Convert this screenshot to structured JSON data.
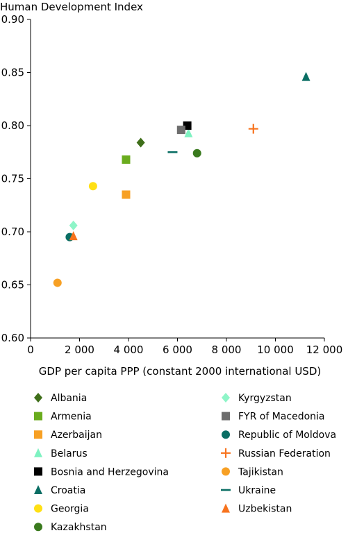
{
  "chart_data": {
    "type": "scatter",
    "ylabel": "Human Development Index",
    "xlabel": "GDP per capita PPP (constant 2000 international USD)",
    "xlim": [
      0,
      12000
    ],
    "ylim": [
      0.6,
      0.9
    ],
    "x_ticks": [
      0,
      2000,
      4000,
      6000,
      8000,
      10000,
      12000
    ],
    "x_tick_labels": [
      "0",
      "2 000",
      "4 000",
      "6 000",
      "8 000",
      "10 000",
      "12 000"
    ],
    "y_ticks": [
      0.6,
      0.65,
      0.7,
      0.75,
      0.8,
      0.85,
      0.9
    ],
    "y_tick_labels": [
      "0.60",
      "0.65",
      "0.70",
      "0.75",
      "0.80",
      "0.85",
      "0.90"
    ],
    "grid": false,
    "legend_position": "bottom",
    "series": [
      {
        "name": "Albania",
        "marker": "diamond",
        "color": "#3f6f1a",
        "x": 4500,
        "y": 0.784
      },
      {
        "name": "Armenia",
        "marker": "square",
        "color": "#6aac1e",
        "x": 3900,
        "y": 0.768
      },
      {
        "name": "Azerbaijan",
        "marker": "square",
        "color": "#f7a024",
        "x": 3900,
        "y": 0.735
      },
      {
        "name": "Belarus",
        "marker": "triangle",
        "color": "#7ef2c1",
        "x": 6450,
        "y": 0.793
      },
      {
        "name": "Bosnia and Herzegovina",
        "marker": "square",
        "color": "#000000",
        "x": 6400,
        "y": 0.8
      },
      {
        "name": "Croatia",
        "marker": "triangle",
        "color": "#0a6e64",
        "x": 11250,
        "y": 0.846
      },
      {
        "name": "Georgia",
        "marker": "circle",
        "color": "#ffe014",
        "x": 2550,
        "y": 0.743
      },
      {
        "name": "Kazakhstan",
        "marker": "circle",
        "color": "#3a7a1e",
        "x": 6800,
        "y": 0.774
      },
      {
        "name": "Kyrgyzstan",
        "marker": "diamond",
        "color": "#8ef5c8",
        "x": 1750,
        "y": 0.706
      },
      {
        "name": "FYR of Macedonia",
        "marker": "square",
        "color": "#6d6d6d",
        "x": 6150,
        "y": 0.796
      },
      {
        "name": "Republic of Moldova",
        "marker": "circle",
        "color": "#0a6e64",
        "x": 1600,
        "y": 0.695
      },
      {
        "name": "Russian Federation",
        "marker": "plus",
        "color": "#f7731e",
        "x": 9100,
        "y": 0.797
      },
      {
        "name": "Tajikistan",
        "marker": "circle",
        "color": "#f7a024",
        "x": 1100,
        "y": 0.652
      },
      {
        "name": "Ukraine",
        "marker": "dash",
        "color": "#0a6e64",
        "x": 5800,
        "y": 0.775
      },
      {
        "name": "Uzbekistan",
        "marker": "triangle",
        "color": "#f7731e",
        "x": 1750,
        "y": 0.696
      }
    ]
  }
}
